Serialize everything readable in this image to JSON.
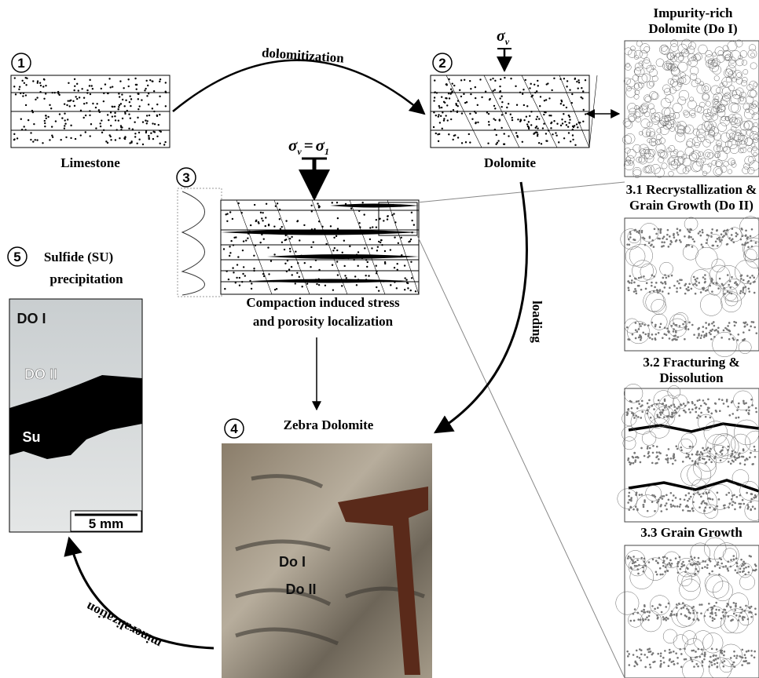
{
  "steps": {
    "s1": "1",
    "s2": "2",
    "s3": "3",
    "s4": "4",
    "s5": "5"
  },
  "step1": {
    "label": "Limestone"
  },
  "dolomitization": "dolomitization",
  "step2": {
    "label": "Dolomite",
    "stress": {
      "symbol": "σ",
      "sub": "v"
    }
  },
  "step3": {
    "stress": {
      "left": "σ",
      "left_sub": "v",
      "op": "=",
      "right": "σ",
      "right_sub": "1"
    },
    "caption": [
      "Compaction induced stress",
      "and porosity localization"
    ]
  },
  "loading": "loading",
  "step4": {
    "title": "Zebra Dolomite",
    "labels": [
      "Do I",
      "Do II"
    ]
  },
  "step5": {
    "title": [
      "Sulfide (SU)",
      "precipitation"
    ],
    "labels": [
      "DO I",
      "DO II",
      "Su"
    ],
    "scale": "5 mm"
  },
  "mineralization": "mineralization",
  "panels": {
    "p0": [
      "Impurity-rich",
      "Dolomite (Do I)"
    ],
    "p1": [
      "3.1 Recrystallization &",
      "Grain Growth (Do II)"
    ],
    "p2": [
      "3.2 Fracturing &",
      "Dissolution"
    ],
    "p3": [
      "3.3 Grain Growth"
    ]
  }
}
